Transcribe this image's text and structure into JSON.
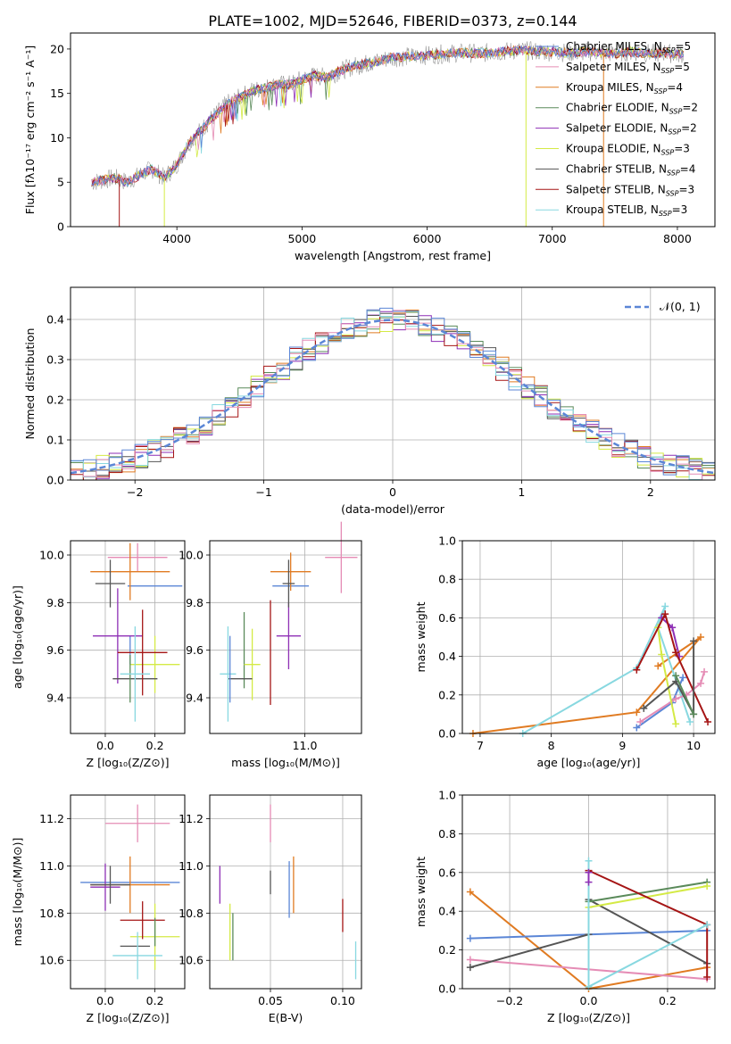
{
  "figure_title": "PLATE=1002, MJD=52646, FIBERID=0373, z=0.144",
  "colors": {
    "blue": "#5b86d6",
    "orange": "#e07b22",
    "green": "#5a8a5a",
    "purple": "#8e2fb5",
    "yellow": "#d4ea45",
    "dark": "#555555",
    "red": "#a51515",
    "cyan": "#88d8e0",
    "pink": "#e58cb5",
    "gray": "#8a8a8a"
  },
  "chart_data": [
    {
      "id": "spectrum",
      "type": "line",
      "xlabel": "wavelength [Angstrom, rest frame]",
      "ylabel": "Flux [fλ10⁻¹⁷ erg cm⁻² s⁻¹ A⁻¹]",
      "xlim": [
        3150,
        8300
      ],
      "ylim": [
        0,
        21.8
      ],
      "xticks": [
        4000,
        5000,
        6000,
        7000,
        8000
      ],
      "yticks": [
        0,
        5,
        10,
        15,
        20
      ],
      "grid": false,
      "legend_position": "right",
      "series_data": {
        "x": [
          3320,
          3400,
          3500,
          3600,
          3700,
          3800,
          3900,
          4000,
          4100,
          4200,
          4300,
          4400,
          4500,
          4600,
          4700,
          4800,
          4900,
          5000,
          5100,
          5200,
          5300,
          5400,
          5500,
          5600,
          5700,
          5800,
          5900,
          6000,
          6100,
          6200,
          6300,
          6400,
          6500,
          6600,
          6700,
          6800,
          6900,
          7000,
          7100,
          7200,
          7300,
          7400,
          7500,
          7600,
          7700,
          7800,
          7900,
          8000,
          8050
        ],
        "model": [
          5.0,
          5.2,
          5.5,
          5.0,
          5.8,
          6.5,
          5.5,
          7.0,
          9.5,
          11.0,
          12.5,
          13.8,
          14.5,
          15.3,
          15.6,
          16.0,
          16.0,
          16.6,
          17.0,
          16.8,
          17.5,
          18.0,
          18.3,
          18.6,
          19.0,
          19.1,
          19.2,
          19.3,
          19.4,
          19.5,
          19.6,
          19.5,
          19.6,
          19.7,
          19.8,
          19.8,
          19.7,
          19.7,
          19.6,
          19.6,
          19.7,
          19.6,
          19.5,
          19.7,
          19.6,
          19.5,
          19.6,
          19.4,
          19.5
        ]
      },
      "legend": [
        {
          "label": "Chabrier MILES, N",
          "sub": "SSP",
          "suffix": "=5",
          "color": "blue"
        },
        {
          "label": "Salpeter MILES, N",
          "sub": "SSP",
          "suffix": "=5",
          "color": "pink"
        },
        {
          "label": "Kroupa MILES, N",
          "sub": "SSP",
          "suffix": "=4",
          "color": "orange"
        },
        {
          "label": "Chabrier ELODIE, N",
          "sub": "SSP",
          "suffix": "=2",
          "color": "green"
        },
        {
          "label": "Salpeter ELODIE, N",
          "sub": "SSP",
          "suffix": "=2",
          "color": "purple"
        },
        {
          "label": "Kroupa ELODIE, N",
          "sub": "SSP",
          "suffix": "=3",
          "color": "yellow"
        },
        {
          "label": "Chabrier STELIB, N",
          "sub": "SSP",
          "suffix": "=4",
          "color": "dark"
        },
        {
          "label": "Salpeter STELIB, N",
          "sub": "SSP",
          "suffix": "=3",
          "color": "red"
        },
        {
          "label": "Kroupa STELIB, N",
          "sub": "SSP",
          "suffix": "=3",
          "color": "cyan"
        }
      ]
    },
    {
      "id": "residuals",
      "type": "histogram",
      "xlabel": "(data-model)/error",
      "ylabel": "Normed distribution",
      "xlim": [
        -2.5,
        2.5
      ],
      "ylim": [
        0,
        0.48
      ],
      "xticks": [
        -2,
        -1,
        0,
        1,
        2
      ],
      "yticks": [
        0.0,
        0.1,
        0.2,
        0.3,
        0.4
      ],
      "grid": true,
      "legend_label": "𝒩(0, 1)",
      "legend_position": "top-right",
      "bin_width": 0.1
    },
    {
      "id": "age_vs_Z",
      "type": "errorbar",
      "xlabel": "Z [log₁₀(Z/Z⊙)]",
      "ylabel": "age  [log₁₀(age/yr)]",
      "xlim": [
        -0.14,
        0.32
      ],
      "ylim": [
        9.25,
        10.06
      ],
      "xticks": [
        0.0,
        0.2
      ],
      "yticks": [
        9.4,
        9.6,
        9.8,
        10.0
      ],
      "grid": true,
      "points": [
        {
          "color": "blue",
          "x": 0.2,
          "xerr": 0.11,
          "y": 9.87,
          "yerr": 0.0
        },
        {
          "color": "blue",
          "x": 0.1,
          "xerr": 0.0,
          "y": 9.6,
          "yerr": 0.06
        },
        {
          "color": "pink",
          "x": 0.13,
          "xerr": 0.12,
          "y": 9.99,
          "yerr": 0.06
        },
        {
          "color": "orange",
          "x": 0.1,
          "xerr": 0.16,
          "y": 9.93,
          "yerr": 0.12
        },
        {
          "color": "purple",
          "x": 0.05,
          "xerr": 0.1,
          "y": 9.66,
          "yerr": 0.2
        },
        {
          "color": "yellow",
          "x": 0.2,
          "xerr": 0.1,
          "y": 9.54,
          "yerr": 0.12
        },
        {
          "color": "dark",
          "x": 0.02,
          "xerr": 0.06,
          "y": 9.88,
          "yerr": 0.1
        },
        {
          "color": "dark",
          "x": 0.12,
          "xerr": 0.09,
          "y": 9.48,
          "yerr": 0.0
        },
        {
          "color": "red",
          "x": 0.15,
          "xerr": 0.1,
          "y": 9.59,
          "yerr": 0.18
        },
        {
          "color": "green",
          "x": 0.1,
          "xerr": 0.0,
          "y": 9.48,
          "yerr": 0.1
        },
        {
          "color": "cyan",
          "x": 0.12,
          "xerr": 0.06,
          "y": 9.5,
          "yerr": 0.2
        }
      ]
    },
    {
      "id": "age_vs_mass",
      "type": "errorbar",
      "xlabel": "mass [log₁₀(M/M⊙)]",
      "ylabel": "",
      "xlim": [
        10.53,
        11.28
      ],
      "ylim": [
        9.25,
        10.06
      ],
      "xticks": [
        10.5,
        11.0
      ],
      "yticks": [
        9.4,
        9.6,
        9.8,
        10.0
      ],
      "grid": true,
      "points": [
        {
          "color": "blue",
          "x": 10.93,
          "xerr": 0.09,
          "y": 9.87,
          "yerr": 0.0
        },
        {
          "color": "pink",
          "x": 11.18,
          "xerr": 0.08,
          "y": 9.99,
          "yerr": 0.15
        },
        {
          "color": "orange",
          "x": 10.93,
          "xerr": 0.1,
          "y": 9.93,
          "yerr": 0.08
        },
        {
          "color": "purple",
          "x": 10.92,
          "xerr": 0.06,
          "y": 9.66,
          "yerr": 0.14
        },
        {
          "color": "green",
          "x": 10.7,
          "xerr": 0.0,
          "y": 9.6,
          "yerr": 0.16
        },
        {
          "color": "yellow",
          "x": 10.74,
          "xerr": 0.04,
          "y": 9.54,
          "yerr": 0.15
        },
        {
          "color": "dark",
          "x": 10.92,
          "xerr": 0.03,
          "y": 9.88,
          "yerr": 0.1
        },
        {
          "color": "dark",
          "x": 10.68,
          "xerr": 0.06,
          "y": 9.48,
          "yerr": 0.0
        },
        {
          "color": "red",
          "x": 10.83,
          "xerr": 0.0,
          "y": 9.59,
          "yerr": 0.22
        },
        {
          "color": "cyan",
          "x": 10.62,
          "xerr": 0.04,
          "y": 9.5,
          "yerr": 0.2
        },
        {
          "color": "blue",
          "x": 10.63,
          "xerr": 0.0,
          "y": 9.52,
          "yerr": 0.14
        }
      ]
    },
    {
      "id": "weight_vs_age",
      "type": "line",
      "xlabel": "age  [log₁₀(age/yr)]",
      "ylabel": "mass weight",
      "xlim": [
        6.75,
        10.3
      ],
      "ylim": [
        0,
        1.0
      ],
      "xticks": [
        7,
        8,
        9,
        10
      ],
      "yticks": [
        0.0,
        0.2,
        0.4,
        0.6,
        0.8,
        1.0
      ],
      "grid": true,
      "series": [
        {
          "color": "orange",
          "x": [
            6.9,
            9.2,
            10.1,
            9.5
          ],
          "y": [
            0.0,
            0.11,
            0.5,
            0.35
          ]
        },
        {
          "color": "cyan",
          "x": [
            7.6,
            9.2,
            9.6,
            9.5,
            9.95
          ],
          "y": [
            0.0,
            0.34,
            0.66,
            0.55,
            0.06
          ]
        },
        {
          "color": "blue",
          "x": [
            9.2,
            9.7,
            9.85
          ],
          "y": [
            0.03,
            0.16,
            0.29
          ]
        },
        {
          "color": "pink",
          "x": [
            9.25,
            9.75,
            9.9,
            10.1,
            10.15
          ],
          "y": [
            0.06,
            0.18,
            0.2,
            0.26,
            0.32
          ]
        },
        {
          "color": "purple",
          "x": [
            9.55,
            9.7,
            9.8
          ],
          "y": [
            0.6,
            0.55,
            0.4
          ]
        },
        {
          "color": "yellow",
          "x": [
            9.5,
            9.55,
            9.75
          ],
          "y": [
            0.55,
            0.41,
            0.05
          ]
        },
        {
          "color": "red",
          "x": [
            9.2,
            9.6,
            9.75,
            10.2
          ],
          "y": [
            0.33,
            0.62,
            0.42,
            0.06
          ]
        },
        {
          "color": "dark",
          "x": [
            9.3,
            9.75,
            10.0,
            10.0
          ],
          "y": [
            0.13,
            0.27,
            0.1,
            0.48
          ]
        },
        {
          "color": "green",
          "x": [
            9.75,
            10.0
          ],
          "y": [
            0.3,
            0.1
          ]
        }
      ]
    },
    {
      "id": "mass_vs_Z",
      "type": "errorbar",
      "xlabel": "Z [log₁₀(Z/Z⊙)]",
      "ylabel": "mass [log₁₀(M/M⊙)]",
      "xlim": [
        -0.14,
        0.32
      ],
      "ylim": [
        10.48,
        11.3
      ],
      "xticks": [
        0.0,
        0.2
      ],
      "yticks": [
        10.6,
        10.8,
        11.0,
        11.2
      ],
      "grid": true,
      "points": [
        {
          "color": "blue",
          "x": 0.1,
          "xerr": 0.2,
          "y": 10.93,
          "yerr": 0.0
        },
        {
          "color": "pink",
          "x": 0.13,
          "xerr": 0.13,
          "y": 11.18,
          "yerr": 0.08
        },
        {
          "color": "orange",
          "x": 0.1,
          "xerr": 0.16,
          "y": 10.92,
          "yerr": 0.12
        },
        {
          "color": "purple",
          "x": 0.0,
          "xerr": 0.06,
          "y": 10.91,
          "yerr": 0.1
        },
        {
          "color": "yellow",
          "x": 0.2,
          "xerr": 0.1,
          "y": 10.7,
          "yerr": 0.14
        },
        {
          "color": "dark",
          "x": 0.02,
          "xerr": 0.08,
          "y": 10.92,
          "yerr": 0.08
        },
        {
          "color": "dark",
          "x": 0.12,
          "xerr": 0.06,
          "y": 10.66,
          "yerr": 0.0
        },
        {
          "color": "red",
          "x": 0.15,
          "xerr": 0.09,
          "y": 10.77,
          "yerr": 0.08
        },
        {
          "color": "cyan",
          "x": 0.13,
          "xerr": 0.1,
          "y": 10.62,
          "yerr": 0.1
        },
        {
          "color": "green",
          "x": 0.2,
          "xerr": 0.0,
          "y": 10.72,
          "yerr": 0.06
        }
      ]
    },
    {
      "id": "mass_vs_ebv",
      "type": "errorbar",
      "xlabel": "E(B-V)",
      "ylabel": "",
      "xlim": [
        0.008,
        0.113
      ],
      "ylim": [
        10.48,
        11.3
      ],
      "xticks": [
        0.05,
        0.1
      ],
      "yticks": [
        10.6,
        10.8,
        11.0,
        11.2
      ],
      "grid": true,
      "points": [
        {
          "color": "purple",
          "x": 0.015,
          "xerr": 0.0,
          "y": 10.92,
          "yerr": 0.08
        },
        {
          "color": "yellow",
          "x": 0.022,
          "xerr": 0.0,
          "y": 10.72,
          "yerr": 0.12
        },
        {
          "color": "green",
          "x": 0.024,
          "xerr": 0.0,
          "y": 10.7,
          "yerr": 0.1
        },
        {
          "color": "pink",
          "x": 0.05,
          "xerr": 0.0,
          "y": 11.18,
          "yerr": 0.08
        },
        {
          "color": "dark",
          "x": 0.05,
          "xerr": 0.0,
          "y": 10.93,
          "yerr": 0.05
        },
        {
          "color": "blue",
          "x": 0.063,
          "xerr": 0.0,
          "y": 10.9,
          "yerr": 0.12
        },
        {
          "color": "orange",
          "x": 0.066,
          "xerr": 0.0,
          "y": 10.92,
          "yerr": 0.12
        },
        {
          "color": "red",
          "x": 0.1,
          "xerr": 0.0,
          "y": 10.79,
          "yerr": 0.07
        },
        {
          "color": "cyan",
          "x": 0.109,
          "xerr": 0.0,
          "y": 10.6,
          "yerr": 0.08
        }
      ]
    },
    {
      "id": "weight_vs_Z",
      "type": "line",
      "xlabel": "Z [log₁₀(Z/Z⊙)]",
      "ylabel": "mass weight",
      "xlim": [
        -0.32,
        0.32
      ],
      "ylim": [
        0,
        1.0
      ],
      "xticks": [
        -0.2,
        0.0,
        0.2
      ],
      "yticks": [
        0.0,
        0.2,
        0.4,
        0.6,
        0.8,
        1.0
      ],
      "grid": true,
      "series": [
        {
          "color": "orange",
          "x": [
            -0.3,
            0.0,
            0.3
          ],
          "y": [
            0.5,
            0.0,
            0.11
          ]
        },
        {
          "color": "blue",
          "x": [
            -0.3,
            0.0,
            0.3
          ],
          "y": [
            0.26,
            0.28,
            0.3
          ]
        },
        {
          "color": "pink",
          "x": [
            -0.3,
            0.3
          ],
          "y": [
            0.15,
            0.05
          ]
        },
        {
          "color": "dark",
          "x": [
            -0.3,
            0.0,
            0.0,
            0.3
          ],
          "y": [
            0.11,
            0.28,
            0.46,
            0.13
          ]
        },
        {
          "color": "green",
          "x": [
            0.0,
            0.3
          ],
          "y": [
            0.45,
            0.55
          ]
        },
        {
          "color": "yellow",
          "x": [
            0.0,
            0.3
          ],
          "y": [
            0.42,
            0.53
          ]
        },
        {
          "color": "red",
          "x": [
            0.0,
            0.3,
            0.3
          ],
          "y": [
            0.61,
            0.33,
            0.06
          ]
        },
        {
          "color": "cyan",
          "x": [
            0.0,
            0.0,
            0.3
          ],
          "y": [
            0.66,
            0.01,
            0.33
          ]
        },
        {
          "color": "purple",
          "x": [
            0.0,
            0.0
          ],
          "y": [
            0.55,
            0.6
          ]
        }
      ]
    }
  ]
}
